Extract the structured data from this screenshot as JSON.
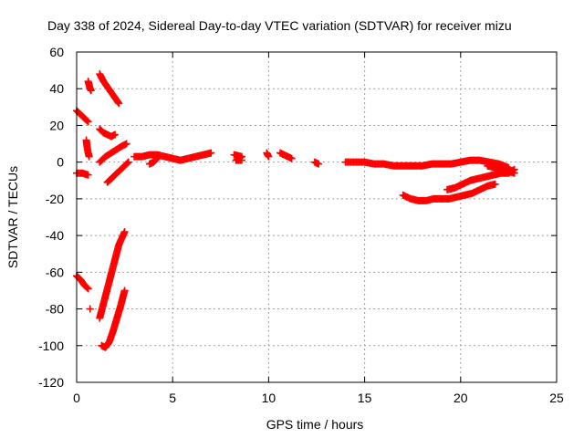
{
  "chart_data": {
    "type": "scatter",
    "title": "Day 338 of 2024, Sidereal Day-to-day VTEC variation (SDTVAR) for receiver mizu",
    "xlabel": "GPS time / hours",
    "ylabel": "SDTVAR / TECUs",
    "xlim": [
      0,
      25
    ],
    "ylim": [
      -120,
      60
    ],
    "xticks": [
      0,
      5,
      10,
      15,
      20,
      25
    ],
    "yticks": [
      -120,
      -100,
      -80,
      -60,
      -40,
      -20,
      0,
      20,
      40,
      60
    ],
    "grid": true,
    "marker": "plus",
    "color": "#ff0000",
    "series": [
      {
        "name": "s1",
        "points": [
          [
            0.0,
            28
          ],
          [
            0.2,
            26
          ],
          [
            0.4,
            24
          ],
          [
            0.6,
            22
          ]
        ]
      },
      {
        "name": "s2",
        "points": [
          [
            0.0,
            -6
          ],
          [
            0.3,
            -6
          ],
          [
            0.6,
            -7
          ]
        ]
      },
      {
        "name": "s3",
        "points": [
          [
            0.0,
            -62
          ],
          [
            0.2,
            -64
          ],
          [
            0.4,
            -67
          ],
          [
            0.6,
            -69
          ]
        ]
      },
      {
        "name": "s4",
        "points": [
          [
            0.6,
            44
          ],
          [
            0.65,
            42
          ],
          [
            0.7,
            40
          ],
          [
            0.75,
            39
          ]
        ]
      },
      {
        "name": "s5",
        "points": [
          [
            0.5,
            12
          ],
          [
            0.55,
            8
          ],
          [
            0.6,
            5
          ],
          [
            0.65,
            3
          ]
        ]
      },
      {
        "name": "s6",
        "points": [
          [
            0.7,
            -80
          ]
        ]
      },
      {
        "name": "s7",
        "points": [
          [
            1.2,
            48
          ],
          [
            1.4,
            44
          ],
          [
            1.6,
            41
          ],
          [
            1.8,
            38
          ],
          [
            2.0,
            35
          ],
          [
            2.2,
            32
          ]
        ]
      },
      {
        "name": "s8",
        "points": [
          [
            1.2,
            18
          ],
          [
            1.4,
            16
          ],
          [
            1.6,
            15
          ],
          [
            1.8,
            14
          ],
          [
            2.0,
            15
          ]
        ]
      },
      {
        "name": "s9",
        "points": [
          [
            1.2,
            0
          ],
          [
            1.5,
            3
          ],
          [
            1.8,
            5
          ],
          [
            2.1,
            7
          ],
          [
            2.4,
            9
          ],
          [
            2.6,
            10
          ]
        ]
      },
      {
        "name": "s10",
        "points": [
          [
            1.6,
            -11
          ],
          [
            1.9,
            -8
          ],
          [
            2.2,
            -5
          ],
          [
            2.5,
            -2
          ],
          [
            2.7,
            0
          ]
        ]
      },
      {
        "name": "s11",
        "points": [
          [
            1.2,
            -85
          ],
          [
            1.4,
            -77
          ],
          [
            1.6,
            -69
          ],
          [
            1.8,
            -61
          ],
          [
            2.0,
            -53
          ],
          [
            2.2,
            -45
          ],
          [
            2.5,
            -38
          ]
        ]
      },
      {
        "name": "s12",
        "points": [
          [
            1.3,
            -100
          ],
          [
            1.5,
            -101
          ],
          [
            1.7,
            -98
          ],
          [
            1.9,
            -92
          ],
          [
            2.1,
            -85
          ],
          [
            2.3,
            -78
          ],
          [
            2.5,
            -70
          ]
        ]
      },
      {
        "name": "s13",
        "points": [
          [
            3.0,
            3
          ],
          [
            3.4,
            3
          ],
          [
            3.8,
            4
          ],
          [
            4.2,
            4
          ],
          [
            4.6,
            3
          ],
          [
            5.0,
            2
          ],
          [
            5.4,
            1
          ],
          [
            5.8,
            2
          ],
          [
            6.2,
            3
          ],
          [
            6.6,
            4
          ],
          [
            7.0,
            5
          ]
        ]
      },
      {
        "name": "s14",
        "points": [
          [
            3.8,
            -1
          ],
          [
            4.0,
            0
          ],
          [
            4.2,
            2
          ]
        ]
      },
      {
        "name": "s15",
        "points": [
          [
            8.2,
            4
          ],
          [
            8.6,
            3
          ],
          [
            8.3,
            1
          ],
          [
            8.6,
            1
          ]
        ]
      },
      {
        "name": "s16",
        "points": [
          [
            9.9,
            5
          ],
          [
            10.0,
            3
          ]
        ]
      },
      {
        "name": "s17",
        "points": [
          [
            10.6,
            5
          ],
          [
            10.8,
            4
          ],
          [
            11.0,
            3
          ],
          [
            11.2,
            2
          ]
        ]
      },
      {
        "name": "s18",
        "points": [
          [
            12.4,
            0
          ],
          [
            12.6,
            -1
          ]
        ]
      },
      {
        "name": "s19",
        "points": [
          [
            14.0,
            0
          ],
          [
            14.5,
            0
          ],
          [
            15.0,
            0
          ],
          [
            15.5,
            -1
          ],
          [
            16.0,
            -1
          ],
          [
            16.5,
            -2
          ],
          [
            17.0,
            -2
          ],
          [
            17.5,
            -2
          ],
          [
            18.0,
            -2
          ],
          [
            18.5,
            -1
          ],
          [
            19.0,
            -1
          ],
          [
            19.5,
            -1
          ],
          [
            20.0,
            0
          ],
          [
            20.5,
            1
          ],
          [
            21.0,
            1
          ],
          [
            21.5,
            0
          ],
          [
            22.0,
            -1
          ],
          [
            22.5,
            -3
          ]
        ]
      },
      {
        "name": "s20",
        "points": [
          [
            17.0,
            -18
          ],
          [
            17.4,
            -20
          ],
          [
            17.8,
            -21
          ],
          [
            18.2,
            -21
          ],
          [
            18.6,
            -20
          ],
          [
            19.0,
            -20
          ],
          [
            19.4,
            -20
          ],
          [
            19.8,
            -19
          ],
          [
            20.2,
            -18
          ],
          [
            20.6,
            -17
          ],
          [
            21.0,
            -15
          ],
          [
            21.4,
            -13
          ],
          [
            21.8,
            -12
          ]
        ]
      },
      {
        "name": "s21",
        "points": [
          [
            19.3,
            -15
          ],
          [
            19.7,
            -14
          ],
          [
            20.1,
            -12
          ],
          [
            20.5,
            -10
          ],
          [
            20.9,
            -9
          ],
          [
            21.3,
            -8
          ],
          [
            21.7,
            -7
          ],
          [
            22.1,
            -6
          ],
          [
            22.5,
            -6
          ],
          [
            22.8,
            -4
          ]
        ]
      },
      {
        "name": "s22",
        "points": [
          [
            21.4,
            -2
          ],
          [
            21.8,
            -3
          ],
          [
            22.2,
            -4
          ],
          [
            22.5,
            -5
          ],
          [
            22.8,
            -6
          ]
        ]
      }
    ]
  }
}
